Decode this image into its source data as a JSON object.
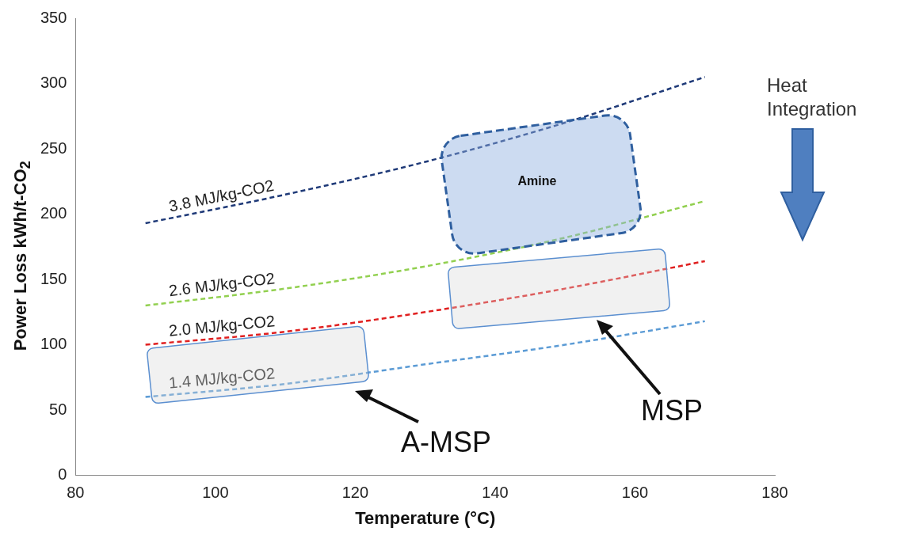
{
  "chart_data": {
    "type": "line",
    "xlabel": "Temperature (°C)",
    "ylabel": "Power Loss  kWh/t-CO$_{2}$",
    "x": [
      90,
      110,
      130,
      150,
      170
    ],
    "series": [
      {
        "name": "3.8 MJ/kg-CO2",
        "color": "#1f3a78",
        "values": [
          193,
          215,
          240,
          270,
          305
        ]
      },
      {
        "name": "2.6 MJ/kg-CO2",
        "color": "#92d050",
        "values": [
          130,
          143,
          160,
          182,
          210
        ]
      },
      {
        "name": "2.0 MJ/kg-CO2",
        "color": "#e02020",
        "values": [
          100,
          110,
          125,
          143,
          164
        ]
      },
      {
        "name": "1.4 MJ/kg-CO2",
        "color": "#5b9bd5",
        "values": [
          60,
          70,
          85,
          100,
          118
        ]
      }
    ],
    "xlim": [
      80,
      180
    ],
    "xticks": [
      80,
      100,
      120,
      140,
      160,
      180
    ],
    "ylim": [
      0,
      350
    ],
    "yticks": [
      0,
      50,
      100,
      150,
      200,
      250,
      300,
      350
    ],
    "grid": false,
    "legend": false,
    "marker": "none",
    "line_style": "dashed",
    "annotations": [
      "Amine",
      "MSP",
      "A-MSP",
      "Heat Integration"
    ]
  }
}
